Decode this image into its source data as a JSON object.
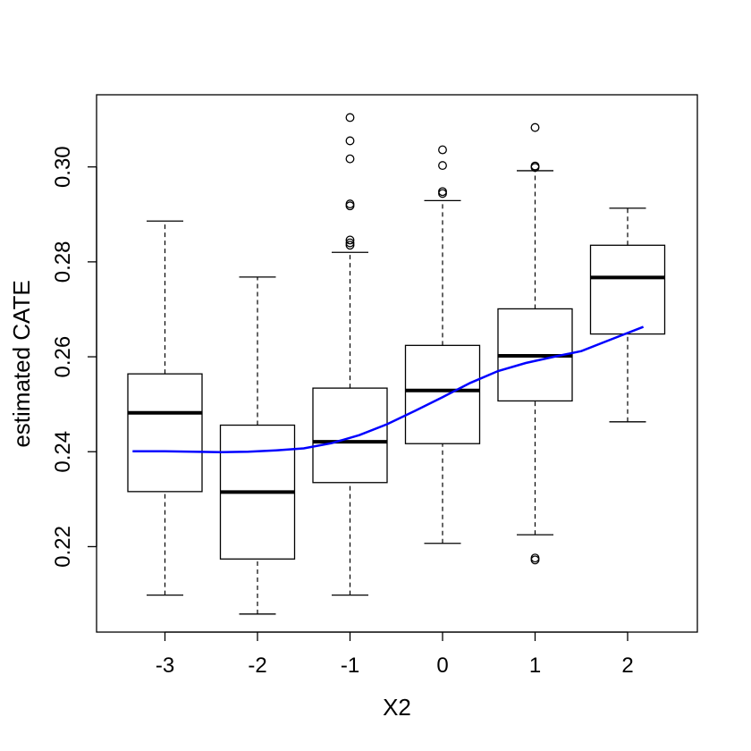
{
  "chart_data": {
    "type": "box",
    "title": "",
    "xlabel": "X2",
    "ylabel": "estimated CATE",
    "ylim": [
      0.202,
      0.3152
    ],
    "yticks": [
      "0.22",
      "0.24",
      "0.26",
      "0.28",
      "0.30"
    ],
    "ytick_values": [
      0.22,
      0.24,
      0.26,
      0.28,
      0.3
    ],
    "categories": [
      "-3",
      "-2",
      "-1",
      "0",
      "1",
      "2"
    ],
    "boxes": [
      {
        "category": "-3",
        "whisker_low": 0.2098,
        "q1": 0.2316,
        "median": 0.2482,
        "q3": 0.2564,
        "whisker_high": 0.2886,
        "outliers": []
      },
      {
        "category": "-2",
        "whisker_low": 0.2058,
        "q1": 0.2174,
        "median": 0.2315,
        "q3": 0.2456,
        "whisker_high": 0.2768,
        "outliers": []
      },
      {
        "category": "-1",
        "whisker_low": 0.2098,
        "q1": 0.2335,
        "median": 0.2421,
        "q3": 0.2534,
        "whisker_high": 0.282,
        "outliers": [
          0.2835,
          0.284,
          0.2846,
          0.2918,
          0.2922,
          0.3017,
          0.3055,
          0.3104
        ]
      },
      {
        "category": "0",
        "whisker_low": 0.2207,
        "q1": 0.2417,
        "median": 0.2529,
        "q3": 0.2624,
        "whisker_high": 0.2929,
        "outliers": [
          0.2944,
          0.2948,
          0.3003,
          0.3036
        ]
      },
      {
        "category": "1",
        "whisker_low": 0.2225,
        "q1": 0.2507,
        "median": 0.2602,
        "q3": 0.2701,
        "whisker_high": 0.2992,
        "outliers": [
          0.2172,
          0.2176,
          0.2999,
          0.3002,
          0.3083
        ]
      },
      {
        "category": "2",
        "whisker_low": 0.2463,
        "q1": 0.2648,
        "median": 0.2767,
        "q3": 0.2835,
        "whisker_high": 0.2913,
        "outliers": []
      }
    ],
    "trend_line": {
      "color": "#0000ff",
      "x": [
        -3.35,
        -3.0,
        -2.7,
        -2.4,
        -2.1,
        -1.8,
        -1.5,
        -1.2,
        -0.9,
        -0.6,
        -0.3,
        0.0,
        0.3,
        0.6,
        0.9,
        1.2,
        1.5,
        1.8,
        2.17
      ],
      "y": [
        0.2401,
        0.2401,
        0.24,
        0.2399,
        0.24,
        0.2403,
        0.2407,
        0.2418,
        0.2435,
        0.2458,
        0.2486,
        0.2515,
        0.2545,
        0.257,
        0.2587,
        0.26,
        0.2612,
        0.2635,
        0.2663
      ]
    },
    "grid": false,
    "legend": "none"
  }
}
